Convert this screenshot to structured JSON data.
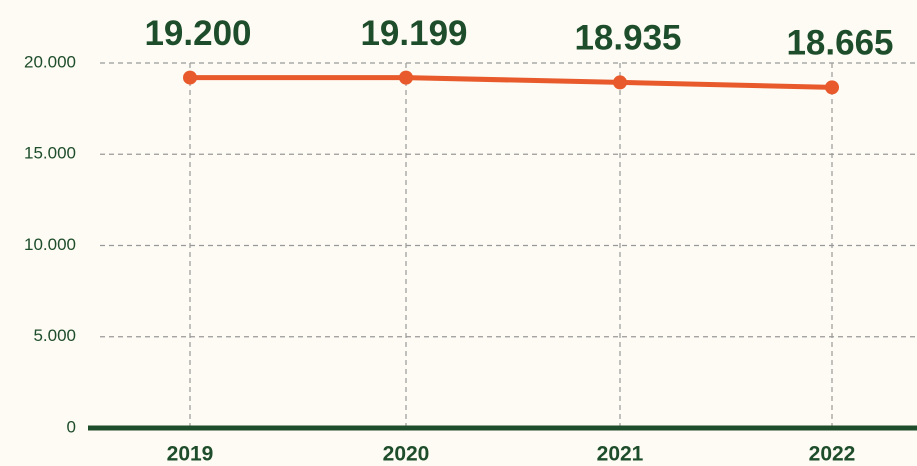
{
  "chart_data": {
    "type": "line",
    "categories": [
      "2019",
      "2020",
      "2021",
      "2022"
    ],
    "series": [
      {
        "name": null,
        "color": "#e85a2c",
        "values": [
          19200,
          19199,
          18935,
          18665
        ],
        "value_labels": [
          "19.200",
          "19.199",
          "18.935",
          "18.665"
        ]
      }
    ],
    "ylim": [
      0,
      20000
    ],
    "yticks": [
      0,
      {
        "value": 5000,
        "label": "5.000"
      },
      {
        "value": 10000,
        "label": "10.000"
      },
      {
        "value": 15000,
        "label": "15.000"
      },
      {
        "value": 20000,
        "label": "20.000"
      }
    ],
    "grid": true
  }
}
